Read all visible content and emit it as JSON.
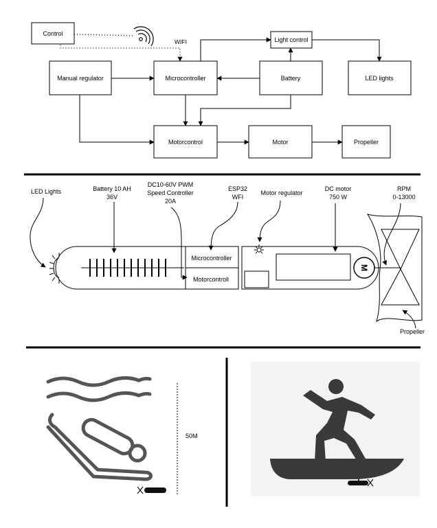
{
  "block_diagram": {
    "control": "Control",
    "wifi": "WIFI",
    "light_control": "Light control",
    "manual_regulator": "Manual regulator",
    "microcontroller": "Microcontroller",
    "battery": "Battery",
    "led_lights": "LED lights",
    "motorcontrol": "Motorcontrol",
    "motor": "Motor",
    "propeller": "Propeller"
  },
  "board_drawing": {
    "led_lights": "LED Lights",
    "battery_spec": [
      "Battery 10 AH",
      "36V"
    ],
    "speed_controller": [
      "DC10-60V PWM",
      "Speed Controller",
      "20A"
    ],
    "esp32": [
      "ESP32",
      "WFI"
    ],
    "motor_regulator": "Motor regulator",
    "dc_motor": [
      "DC motor",
      "750 W"
    ],
    "rpm": [
      "RPM",
      "0-13000"
    ],
    "microcontroller": "Microcontroller",
    "motorcontroll": "Motorcontroll",
    "motor_letter": "M",
    "propeller": "Propeller"
  },
  "usage_panels": {
    "depth_label": "50M"
  },
  "colors": {
    "line": "#000000",
    "icon_dark": "#3a3a3a",
    "panel_bg": "#f3f3f3"
  }
}
